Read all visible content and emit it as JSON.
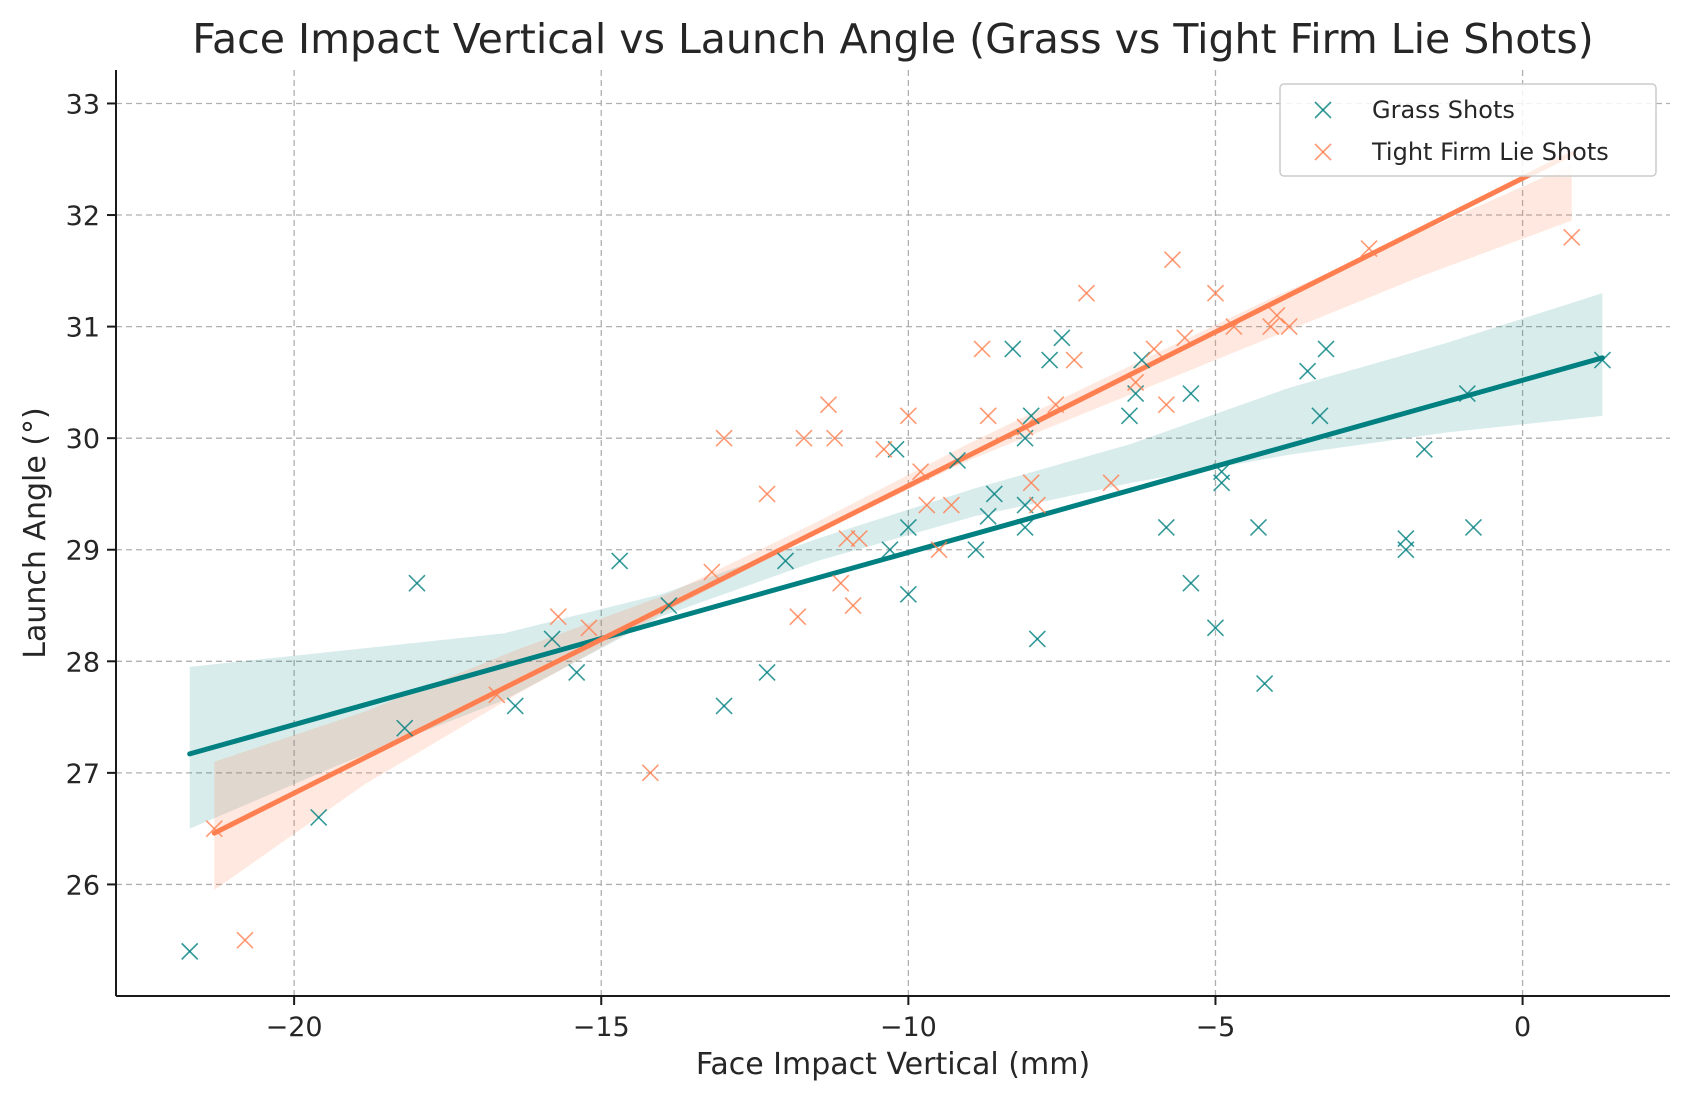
{
  "chart_data": {
    "type": "scatter",
    "title": "Face Impact Vertical vs Launch Angle (Grass vs Tight Firm Lie Shots)",
    "xlabel": "Face Impact Vertical (mm)",
    "ylabel": "Launch Angle (°)",
    "xlim": [
      -22.9,
      2.4
    ],
    "ylim": [
      25.0,
      33.3
    ],
    "xticks": [
      -20,
      -15,
      -10,
      -5,
      0
    ],
    "xtick_labels": [
      "−20",
      "−15",
      "−10",
      "−5",
      "0"
    ],
    "yticks": [
      26,
      27,
      28,
      29,
      30,
      31,
      32,
      33
    ],
    "ytick_labels": [
      "26",
      "27",
      "28",
      "29",
      "30",
      "31",
      "32",
      "33"
    ],
    "grid": true,
    "legend_position": "top-right",
    "series": [
      {
        "name": "Grass Shots",
        "color": "#008080",
        "marker": "x",
        "points": [
          [
            -21.7,
            25.4
          ],
          [
            -19.6,
            26.6
          ],
          [
            -18.2,
            27.4
          ],
          [
            -18.0,
            28.7
          ],
          [
            -16.4,
            27.6
          ],
          [
            -15.8,
            28.2
          ],
          [
            -15.4,
            27.9
          ],
          [
            -14.7,
            28.9
          ],
          [
            -13.9,
            28.5
          ],
          [
            -13.0,
            27.6
          ],
          [
            -12.3,
            27.9
          ],
          [
            -12.0,
            28.9
          ],
          [
            -10.3,
            29.0
          ],
          [
            -10.2,
            29.9
          ],
          [
            -10.0,
            29.2
          ],
          [
            -10.0,
            28.6
          ],
          [
            -9.2,
            29.8
          ],
          [
            -8.9,
            29.0
          ],
          [
            -8.7,
            29.3
          ],
          [
            -8.6,
            29.5
          ],
          [
            -8.3,
            30.8
          ],
          [
            -8.1,
            29.4
          ],
          [
            -8.1,
            29.2
          ],
          [
            -8.1,
            30.0
          ],
          [
            -8.0,
            30.2
          ],
          [
            -7.9,
            28.2
          ],
          [
            -7.7,
            30.7
          ],
          [
            -7.5,
            30.9
          ],
          [
            -6.4,
            30.2
          ],
          [
            -6.3,
            30.4
          ],
          [
            -6.2,
            30.7
          ],
          [
            -5.8,
            29.2
          ],
          [
            -5.4,
            28.7
          ],
          [
            -5.4,
            30.4
          ],
          [
            -5.0,
            28.3
          ],
          [
            -4.9,
            29.6
          ],
          [
            -4.9,
            29.7
          ],
          [
            -4.3,
            29.2
          ],
          [
            -4.2,
            27.8
          ],
          [
            -3.5,
            30.6
          ],
          [
            -3.3,
            30.2
          ],
          [
            -3.2,
            30.8
          ],
          [
            -1.9,
            29.0
          ],
          [
            -1.9,
            29.1
          ],
          [
            -1.6,
            29.9
          ],
          [
            -0.9,
            30.4
          ],
          [
            -0.8,
            29.2
          ],
          [
            1.3,
            30.7
          ]
        ],
        "fit": {
          "x": [
            -21.7,
            1.3
          ],
          "y": [
            27.17,
            30.72
          ]
        },
        "ci_lower": [
          26.5,
          27.1,
          27.65,
          28.4,
          28.9,
          29.3,
          29.6,
          29.85,
          30.05,
          30.2
        ],
        "ci_upper": [
          27.95,
          28.1,
          28.25,
          28.6,
          29.1,
          29.55,
          29.95,
          30.45,
          30.85,
          31.3
        ]
      },
      {
        "name": "Tight Firm Lie Shots",
        "color": "#ff7f50",
        "marker": "x",
        "points": [
          [
            -21.3,
            26.5
          ],
          [
            -20.8,
            25.5
          ],
          [
            -16.7,
            27.7
          ],
          [
            -15.7,
            28.4
          ],
          [
            -15.2,
            28.3
          ],
          [
            -14.2,
            27.0
          ],
          [
            -13.2,
            28.8
          ],
          [
            -13.0,
            30.0
          ],
          [
            -12.3,
            29.5
          ],
          [
            -11.8,
            28.4
          ],
          [
            -11.7,
            30.0
          ],
          [
            -11.3,
            30.3
          ],
          [
            -11.2,
            30.0
          ],
          [
            -11.1,
            28.7
          ],
          [
            -11.0,
            29.1
          ],
          [
            -10.9,
            28.5
          ],
          [
            -10.8,
            29.1
          ],
          [
            -10.4,
            29.9
          ],
          [
            -10.0,
            30.2
          ],
          [
            -9.8,
            29.7
          ],
          [
            -9.7,
            29.4
          ],
          [
            -9.5,
            29.0
          ],
          [
            -9.3,
            29.4
          ],
          [
            -8.8,
            30.8
          ],
          [
            -8.7,
            30.2
          ],
          [
            -8.1,
            30.1
          ],
          [
            -8.0,
            29.6
          ],
          [
            -7.9,
            29.4
          ],
          [
            -7.6,
            30.3
          ],
          [
            -7.3,
            30.7
          ],
          [
            -7.1,
            31.3
          ],
          [
            -6.7,
            29.6
          ],
          [
            -6.3,
            30.5
          ],
          [
            -6.0,
            30.8
          ],
          [
            -5.8,
            30.3
          ],
          [
            -5.7,
            31.6
          ],
          [
            -5.5,
            30.9
          ],
          [
            -5.0,
            31.3
          ],
          [
            -4.7,
            31.0
          ],
          [
            -4.1,
            31.0
          ],
          [
            -4.0,
            31.1
          ],
          [
            -3.8,
            31.0
          ],
          [
            -2.5,
            31.7
          ],
          [
            0.8,
            31.8
          ]
        ],
        "fit": {
          "x": [
            -21.3,
            0.8
          ],
          "y": [
            26.46,
            32.55
          ]
        },
        "ci_lower": [
          25.95,
          26.9,
          27.7,
          28.45,
          29.15,
          29.8,
          30.35,
          30.9,
          31.45,
          31.95
        ],
        "ci_upper": [
          27.1,
          27.55,
          28.1,
          28.6,
          29.25,
          29.95,
          30.6,
          31.25,
          31.85,
          32.45
        ]
      }
    ]
  }
}
